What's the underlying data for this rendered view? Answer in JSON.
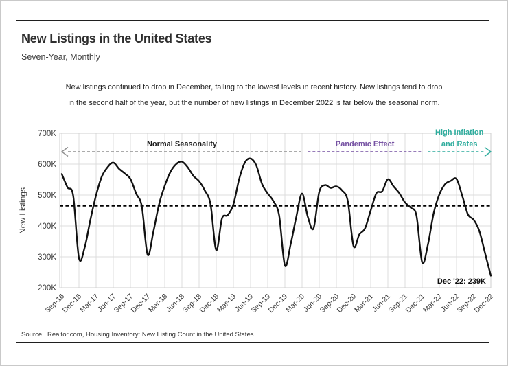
{
  "header": {
    "title": "New Listings in the United States",
    "subtitle": "Seven-Year, Monthly"
  },
  "description": {
    "line1": "New listings continued to drop in December, falling to the lowest levels in recent history. New listings tend to drop",
    "line2": "in the second half of the year, but the number of new listings in December 2022 is far below the seasonal norm."
  },
  "chart_data": {
    "type": "line",
    "ylabel": "New Listings",
    "ylim": [
      200,
      700
    ],
    "y_tick_values": [
      200,
      300,
      400,
      500,
      600,
      700
    ],
    "y_tick_labels": [
      "200K",
      "300K",
      "400K",
      "500K",
      "600K",
      "700K"
    ],
    "x_tick_labels": [
      "Sep-16",
      "Dec-16",
      "Mar-17",
      "Jun-17",
      "Sep-17",
      "Dec-17",
      "Mar-18",
      "Jun-18",
      "Sep-18",
      "Dec-18",
      "Mar-19",
      "Jun-19",
      "Sep-19",
      "Dec-19",
      "Mar-20",
      "Jun-20",
      "Sep-20",
      "Dec-20",
      "Mar-21",
      "Jun-21",
      "Sep-21",
      "Dec-21",
      "Mar-22",
      "Jun-22",
      "Sep-22",
      "Dec-22"
    ],
    "grid": true,
    "months": [
      "Sep-16",
      "Oct-16",
      "Nov-16",
      "Dec-16",
      "Jan-17",
      "Feb-17",
      "Mar-17",
      "Apr-17",
      "May-17",
      "Jun-17",
      "Jul-17",
      "Aug-17",
      "Sep-17",
      "Oct-17",
      "Nov-17",
      "Dec-17",
      "Jan-18",
      "Feb-18",
      "Mar-18",
      "Apr-18",
      "May-18",
      "Jun-18",
      "Jul-18",
      "Aug-18",
      "Sep-18",
      "Oct-18",
      "Nov-18",
      "Dec-18",
      "Jan-19",
      "Feb-19",
      "Mar-19",
      "Apr-19",
      "May-19",
      "Jun-19",
      "Jul-19",
      "Aug-19",
      "Sep-19",
      "Oct-19",
      "Nov-19",
      "Dec-19",
      "Jan-20",
      "Feb-20",
      "Mar-20",
      "Apr-20",
      "May-20",
      "Jun-20",
      "Jul-20",
      "Aug-20",
      "Sep-20",
      "Oct-20",
      "Nov-20",
      "Dec-20",
      "Jan-21",
      "Feb-21",
      "Mar-21",
      "Apr-21",
      "May-21",
      "Jun-21",
      "Jul-21",
      "Aug-21",
      "Sep-21",
      "Oct-21",
      "Nov-21",
      "Dec-21",
      "Jan-22",
      "Feb-22",
      "Mar-22",
      "Apr-22",
      "May-22",
      "Jun-22",
      "Jul-22",
      "Aug-22",
      "Sep-22",
      "Oct-22",
      "Nov-22",
      "Dec-22"
    ],
    "series": [
      {
        "name": "New Listings (thousands)",
        "color": "#111111",
        "values": [
          568,
          525,
          497,
          296,
          330,
          420,
          500,
          560,
          590,
          605,
          585,
          570,
          552,
          505,
          462,
          307,
          380,
          470,
          530,
          575,
          600,
          608,
          590,
          562,
          545,
          515,
          470,
          322,
          424,
          435,
          470,
          551,
          605,
          618,
          596,
          536,
          505,
          480,
          433,
          272,
          340,
          430,
          505,
          430,
          392,
          510,
          532,
          523,
          528,
          515,
          480,
          335,
          372,
          392,
          450,
          506,
          512,
          551,
          528,
          506,
          476,
          459,
          433,
          282,
          339,
          441,
          502,
          535,
          546,
          552,
          498,
          437,
          420,
          383,
          311,
          239
        ]
      }
    ],
    "seasonal_norm_line": {
      "value": 465,
      "style": "dashed",
      "color": "#000000"
    },
    "annotations": [
      {
        "id": "normal-seasonality",
        "text_lines": [
          "Normal Seasonality"
        ],
        "text_color": "#1a1a1a",
        "line_color": "#8f8f8f",
        "x_start": "Sep-16",
        "x_end": "Mar-20",
        "y_value": 640,
        "arrow": "left"
      },
      {
        "id": "pandemic-effect",
        "text_lines": [
          "Pandemic Effect"
        ],
        "text_color": "#7551A2",
        "line_color": "#7551A2",
        "x_start": "Apr-20",
        "x_end": "Dec-21",
        "y_value": 640,
        "arrow": "none"
      },
      {
        "id": "high-inflation-and-rates",
        "text_lines": [
          "High Inflation",
          "and Rates"
        ],
        "text_color": "#2EAC9D",
        "line_color": "#2EAC9D",
        "x_start": "Jan-22",
        "x_end": "Dec-22",
        "y_value": 640,
        "arrow": "right"
      }
    ],
    "endpoint_label": {
      "text": "Dec '22: 239K",
      "month": "Dec-22",
      "value": 239
    }
  },
  "footer": {
    "source": "Source:  Realtor.com, Housing Inventory: New Listing Count in the United States"
  }
}
